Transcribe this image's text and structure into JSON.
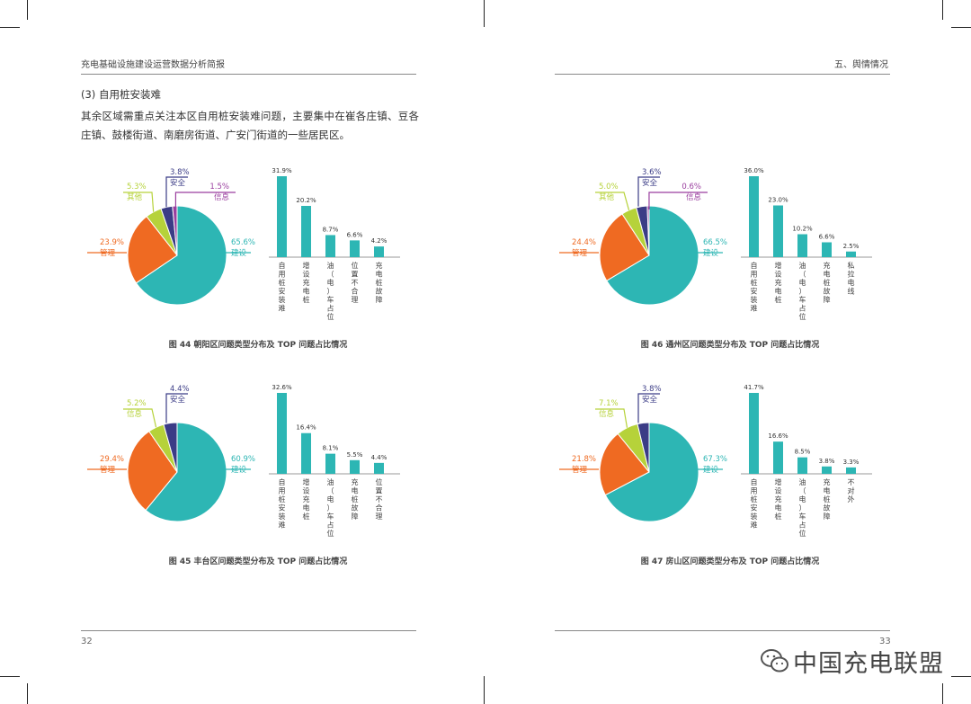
{
  "header": {
    "left_title": "充电基础设施建设运营数据分析简报",
    "right_title": "五、舆情情况"
  },
  "body": {
    "subheading": "(3) 自用桩安装难",
    "paragraph": "其余区域需重点关注本区自用桩安装难问题，主要集中在崔各庄镇、豆各庄镇、鼓楼街道、南磨房街道、广安门街道的一些居民区。"
  },
  "footer": {
    "left_page": "32",
    "right_page": "33",
    "watermark": "中国充电联盟",
    "watermark_icon": "wechat-icon"
  },
  "colors": {
    "建设": "#2db6b4",
    "管理": "#ef6a22",
    "其他": "#b6d23a",
    "信息_green": "#b6d23a",
    "安全": "#3b3c86",
    "信息": "#9a3f9f",
    "bar": "#2db6b4"
  },
  "chart_data": [
    {
      "caption": "图 44 朝阳区问题类型分布及 TOP 问题占比情况",
      "pie": {
        "type": "pie",
        "slices": [
          {
            "label": "建设",
            "value": 65.6,
            "text": "65.6%",
            "color": "#2db6b4"
          },
          {
            "label": "管理",
            "value": 23.9,
            "text": "23.9%",
            "color": "#ef6a22"
          },
          {
            "label": "其他",
            "value": 5.3,
            "text": "5.3%",
            "color": "#b6d23a"
          },
          {
            "label": "安全",
            "value": 3.8,
            "text": "3.8%",
            "color": "#3b3c86"
          },
          {
            "label": "信息",
            "value": 1.5,
            "text": "1.5%",
            "color": "#9a3f9f"
          }
        ]
      },
      "bar": {
        "type": "bar",
        "categories": [
          "自用桩安装难",
          "增设充电桩",
          "油（电）车占位",
          "位置不合理",
          "充电桩故障"
        ],
        "values": [
          31.9,
          20.2,
          8.7,
          6.6,
          4.2
        ],
        "labels": [
          "31.9%",
          "20.2%",
          "8.7%",
          "6.6%",
          "4.2%"
        ]
      }
    },
    {
      "caption": "图 45 丰台区问题类型分布及 TOP 问题占比情况",
      "pie": {
        "type": "pie",
        "slices": [
          {
            "label": "建设",
            "value": 60.9,
            "text": "60.9%",
            "color": "#2db6b4"
          },
          {
            "label": "管理",
            "value": 29.4,
            "text": "29.4%",
            "color": "#ef6a22"
          },
          {
            "label": "信息",
            "value": 5.2,
            "text": "5.2%",
            "color": "#b6d23a"
          },
          {
            "label": "安全",
            "value": 4.4,
            "text": "4.4%",
            "color": "#3b3c86"
          }
        ]
      },
      "bar": {
        "type": "bar",
        "categories": [
          "自用桩安装难",
          "增设充电桩",
          "油（电）车占位",
          "充电桩故障",
          "位置不合理"
        ],
        "values": [
          32.6,
          16.4,
          8.1,
          5.5,
          4.4
        ],
        "labels": [
          "32.6%",
          "16.4%",
          "8.1%",
          "5.5%",
          "4.4%"
        ]
      }
    },
    {
      "caption": "图 46  通州区问题类型分布及 TOP 问题占比情况",
      "pie": {
        "type": "pie",
        "slices": [
          {
            "label": "建设",
            "value": 66.5,
            "text": "66.5%",
            "color": "#2db6b4"
          },
          {
            "label": "管理",
            "value": 24.4,
            "text": "24.4%",
            "color": "#ef6a22"
          },
          {
            "label": "其他",
            "value": 5.0,
            "text": "5.0%",
            "color": "#b6d23a"
          },
          {
            "label": "安全",
            "value": 3.6,
            "text": "3.6%",
            "color": "#3b3c86"
          },
          {
            "label": "信息",
            "value": 0.6,
            "text": "0.6%",
            "color": "#9a3f9f"
          }
        ]
      },
      "bar": {
        "type": "bar",
        "categories": [
          "自用桩安装难",
          "增设充电桩",
          "油（电）车占位",
          "充电桩故障",
          "私拉电线"
        ],
        "values": [
          36.0,
          23.0,
          10.2,
          6.6,
          2.5
        ],
        "labels": [
          "36.0%",
          "23.0%",
          "10.2%",
          "6.6%",
          "2.5%"
        ]
      }
    },
    {
      "caption": "图 47  房山区问题类型分布及 TOP 问题占比情况",
      "pie": {
        "type": "pie",
        "slices": [
          {
            "label": "建设",
            "value": 67.3,
            "text": "67.3%",
            "color": "#2db6b4"
          },
          {
            "label": "管理",
            "value": 21.8,
            "text": "21.8%",
            "color": "#ef6a22"
          },
          {
            "label": "信息",
            "value": 7.1,
            "text": "7.1%",
            "color": "#b6d23a"
          },
          {
            "label": "安全",
            "value": 3.8,
            "text": "3.8%",
            "color": "#3b3c86"
          }
        ]
      },
      "bar": {
        "type": "bar",
        "categories": [
          "自用桩安装难",
          "增设充电桩",
          "油（电）车占位",
          "充电桩故障",
          "不对外"
        ],
        "values": [
          41.7,
          16.6,
          8.5,
          3.8,
          3.3
        ],
        "labels": [
          "41.7%",
          "16.6%",
          "8.5%",
          "3.8%",
          "3.3%"
        ]
      }
    }
  ]
}
